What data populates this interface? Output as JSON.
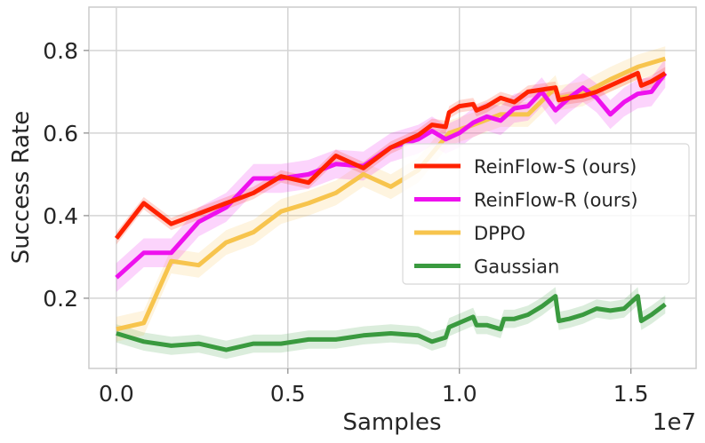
{
  "chart_data": {
    "type": "line",
    "title": "",
    "xlabel": "Samples",
    "ylabel": "Success Rate",
    "x_offset_text": "1e7",
    "xlim": [
      -0.08,
      1.69
    ],
    "ylim": [
      0.03,
      0.905
    ],
    "x_ticks": [
      0.0,
      0.5,
      1.0,
      1.5
    ],
    "x_tick_labels": [
      "0.0",
      "0.5",
      "1.0",
      "1.5"
    ],
    "y_ticks": [
      0.2,
      0.4,
      0.6,
      0.8
    ],
    "y_tick_labels": [
      "0.2",
      "0.4",
      "0.6",
      "0.8"
    ],
    "grid": true,
    "legend_position": "center-right",
    "series": [
      {
        "name": "ReinFlow-S (ours)",
        "color": "#ff2200",
        "band": 0.015,
        "x": [
          0,
          0.08,
          0.16,
          0.24,
          0.32,
          0.4,
          0.48,
          0.56,
          0.64,
          0.72,
          0.8,
          0.88,
          0.92,
          0.96,
          0.97,
          1.0,
          1.04,
          1.05,
          1.08,
          1.12,
          1.16,
          1.2,
          1.24,
          1.28,
          1.29,
          1.32,
          1.36,
          1.4,
          1.44,
          1.48,
          1.52,
          1.53,
          1.56,
          1.6
        ],
        "y": [
          0.345,
          0.43,
          0.38,
          0.405,
          0.43,
          0.455,
          0.495,
          0.48,
          0.545,
          0.515,
          0.565,
          0.595,
          0.62,
          0.615,
          0.65,
          0.665,
          0.67,
          0.655,
          0.665,
          0.685,
          0.675,
          0.7,
          0.705,
          0.71,
          0.68,
          0.685,
          0.69,
          0.7,
          0.715,
          0.73,
          0.745,
          0.715,
          0.725,
          0.745
        ]
      },
      {
        "name": "ReinFlow-R (ours)",
        "color": "#ee11ee",
        "band": 0.035,
        "x": [
          0,
          0.08,
          0.16,
          0.24,
          0.32,
          0.4,
          0.48,
          0.56,
          0.64,
          0.72,
          0.8,
          0.88,
          0.92,
          0.96,
          1.0,
          1.04,
          1.08,
          1.12,
          1.16,
          1.2,
          1.24,
          1.28,
          1.32,
          1.36,
          1.4,
          1.44,
          1.48,
          1.52,
          1.56,
          1.6
        ],
        "y": [
          0.25,
          0.31,
          0.31,
          0.385,
          0.42,
          0.49,
          0.49,
          0.5,
          0.525,
          0.52,
          0.565,
          0.585,
          0.605,
          0.585,
          0.6,
          0.625,
          0.64,
          0.63,
          0.66,
          0.665,
          0.7,
          0.655,
          0.685,
          0.71,
          0.685,
          0.645,
          0.675,
          0.695,
          0.7,
          0.745
        ]
      },
      {
        "name": "DPPO",
        "color": "#f7c44d",
        "band": 0.03,
        "x": [
          0,
          0.08,
          0.16,
          0.24,
          0.32,
          0.4,
          0.48,
          0.56,
          0.64,
          0.72,
          0.8,
          0.88,
          0.96,
          0.97,
          1.04,
          1.12,
          1.2,
          1.28,
          1.29,
          1.36,
          1.44,
          1.52,
          1.6
        ],
        "y": [
          0.125,
          0.14,
          0.29,
          0.28,
          0.335,
          0.36,
          0.41,
          0.43,
          0.455,
          0.5,
          0.47,
          0.51,
          0.59,
          0.6,
          0.62,
          0.645,
          0.645,
          0.71,
          0.685,
          0.695,
          0.73,
          0.76,
          0.78
        ]
      },
      {
        "name": "Gaussian",
        "color": "#3a9a3f",
        "band": 0.022,
        "x": [
          0,
          0.08,
          0.16,
          0.24,
          0.32,
          0.4,
          0.48,
          0.56,
          0.64,
          0.72,
          0.8,
          0.88,
          0.92,
          0.96,
          0.97,
          1.04,
          1.05,
          1.08,
          1.12,
          1.13,
          1.16,
          1.2,
          1.24,
          1.28,
          1.29,
          1.32,
          1.36,
          1.4,
          1.44,
          1.48,
          1.52,
          1.53,
          1.56,
          1.6
        ],
        "y": [
          0.115,
          0.095,
          0.085,
          0.09,
          0.075,
          0.09,
          0.09,
          0.1,
          0.1,
          0.11,
          0.115,
          0.11,
          0.095,
          0.105,
          0.13,
          0.155,
          0.135,
          0.135,
          0.125,
          0.15,
          0.15,
          0.16,
          0.18,
          0.205,
          0.145,
          0.15,
          0.16,
          0.175,
          0.17,
          0.175,
          0.205,
          0.145,
          0.16,
          0.185
        ]
      }
    ]
  }
}
